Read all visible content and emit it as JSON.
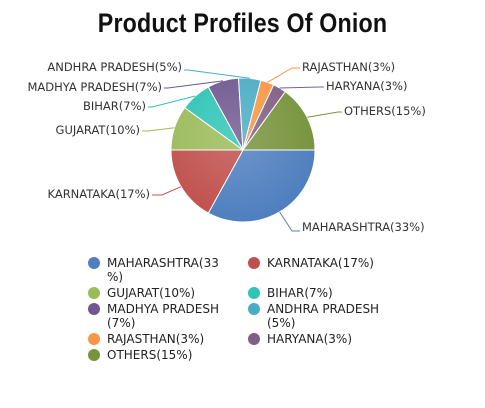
{
  "chart_data": {
    "type": "pie",
    "title": "Product Profiles Of Onion",
    "slices": [
      {
        "name": "MAHARASHTRA",
        "value": 33,
        "label": "MAHARASHTRA(33%)",
        "legend": "MAHARASHTRA(33 %)",
        "color": "#4f7fbf"
      },
      {
        "name": "KARNATAKA",
        "value": 17,
        "label": "KARNATAKA(17%)",
        "legend": "KARNATAKA(17%)",
        "color": "#c0504d"
      },
      {
        "name": "GUJARAT",
        "value": 10,
        "label": "GUJARAT(10%)",
        "legend": "GUJARAT(10%)",
        "color": "#9bbb59"
      },
      {
        "name": "BIHAR",
        "value": 7,
        "label": "BIHAR(7%)",
        "legend": "BIHAR(7%)",
        "color": "#2ec4b6"
      },
      {
        "name": "MADHYA PRADESH",
        "value": 7,
        "label": "MADHYA PRADESH(7%)",
        "legend": "MADHYA PRADESH(7%)",
        "color": "#70578f"
      },
      {
        "name": "ANDHRA PRADESH",
        "value": 5,
        "label": "ANDHRA PRADESH(5%)",
        "legend": "ANDHRA PRADESH(5%)",
        "color": "#4aacc5"
      },
      {
        "name": "RAJASTHAN",
        "value": 3,
        "label": "RAJASTHAN(3%)",
        "legend": "RAJASTHAN(3%)",
        "color": "#f79646"
      },
      {
        "name": "HARYANA",
        "value": 3,
        "label": "HARYANA(3%)",
        "legend": "HARYANA(3%)",
        "color": "#7f5f86"
      },
      {
        "name": "OTHERS",
        "value": 15,
        "label": "OTHERS(15%)",
        "legend": "OTHERS(15%)",
        "color": "#77933c"
      }
    ],
    "legend_position": "bottom"
  }
}
